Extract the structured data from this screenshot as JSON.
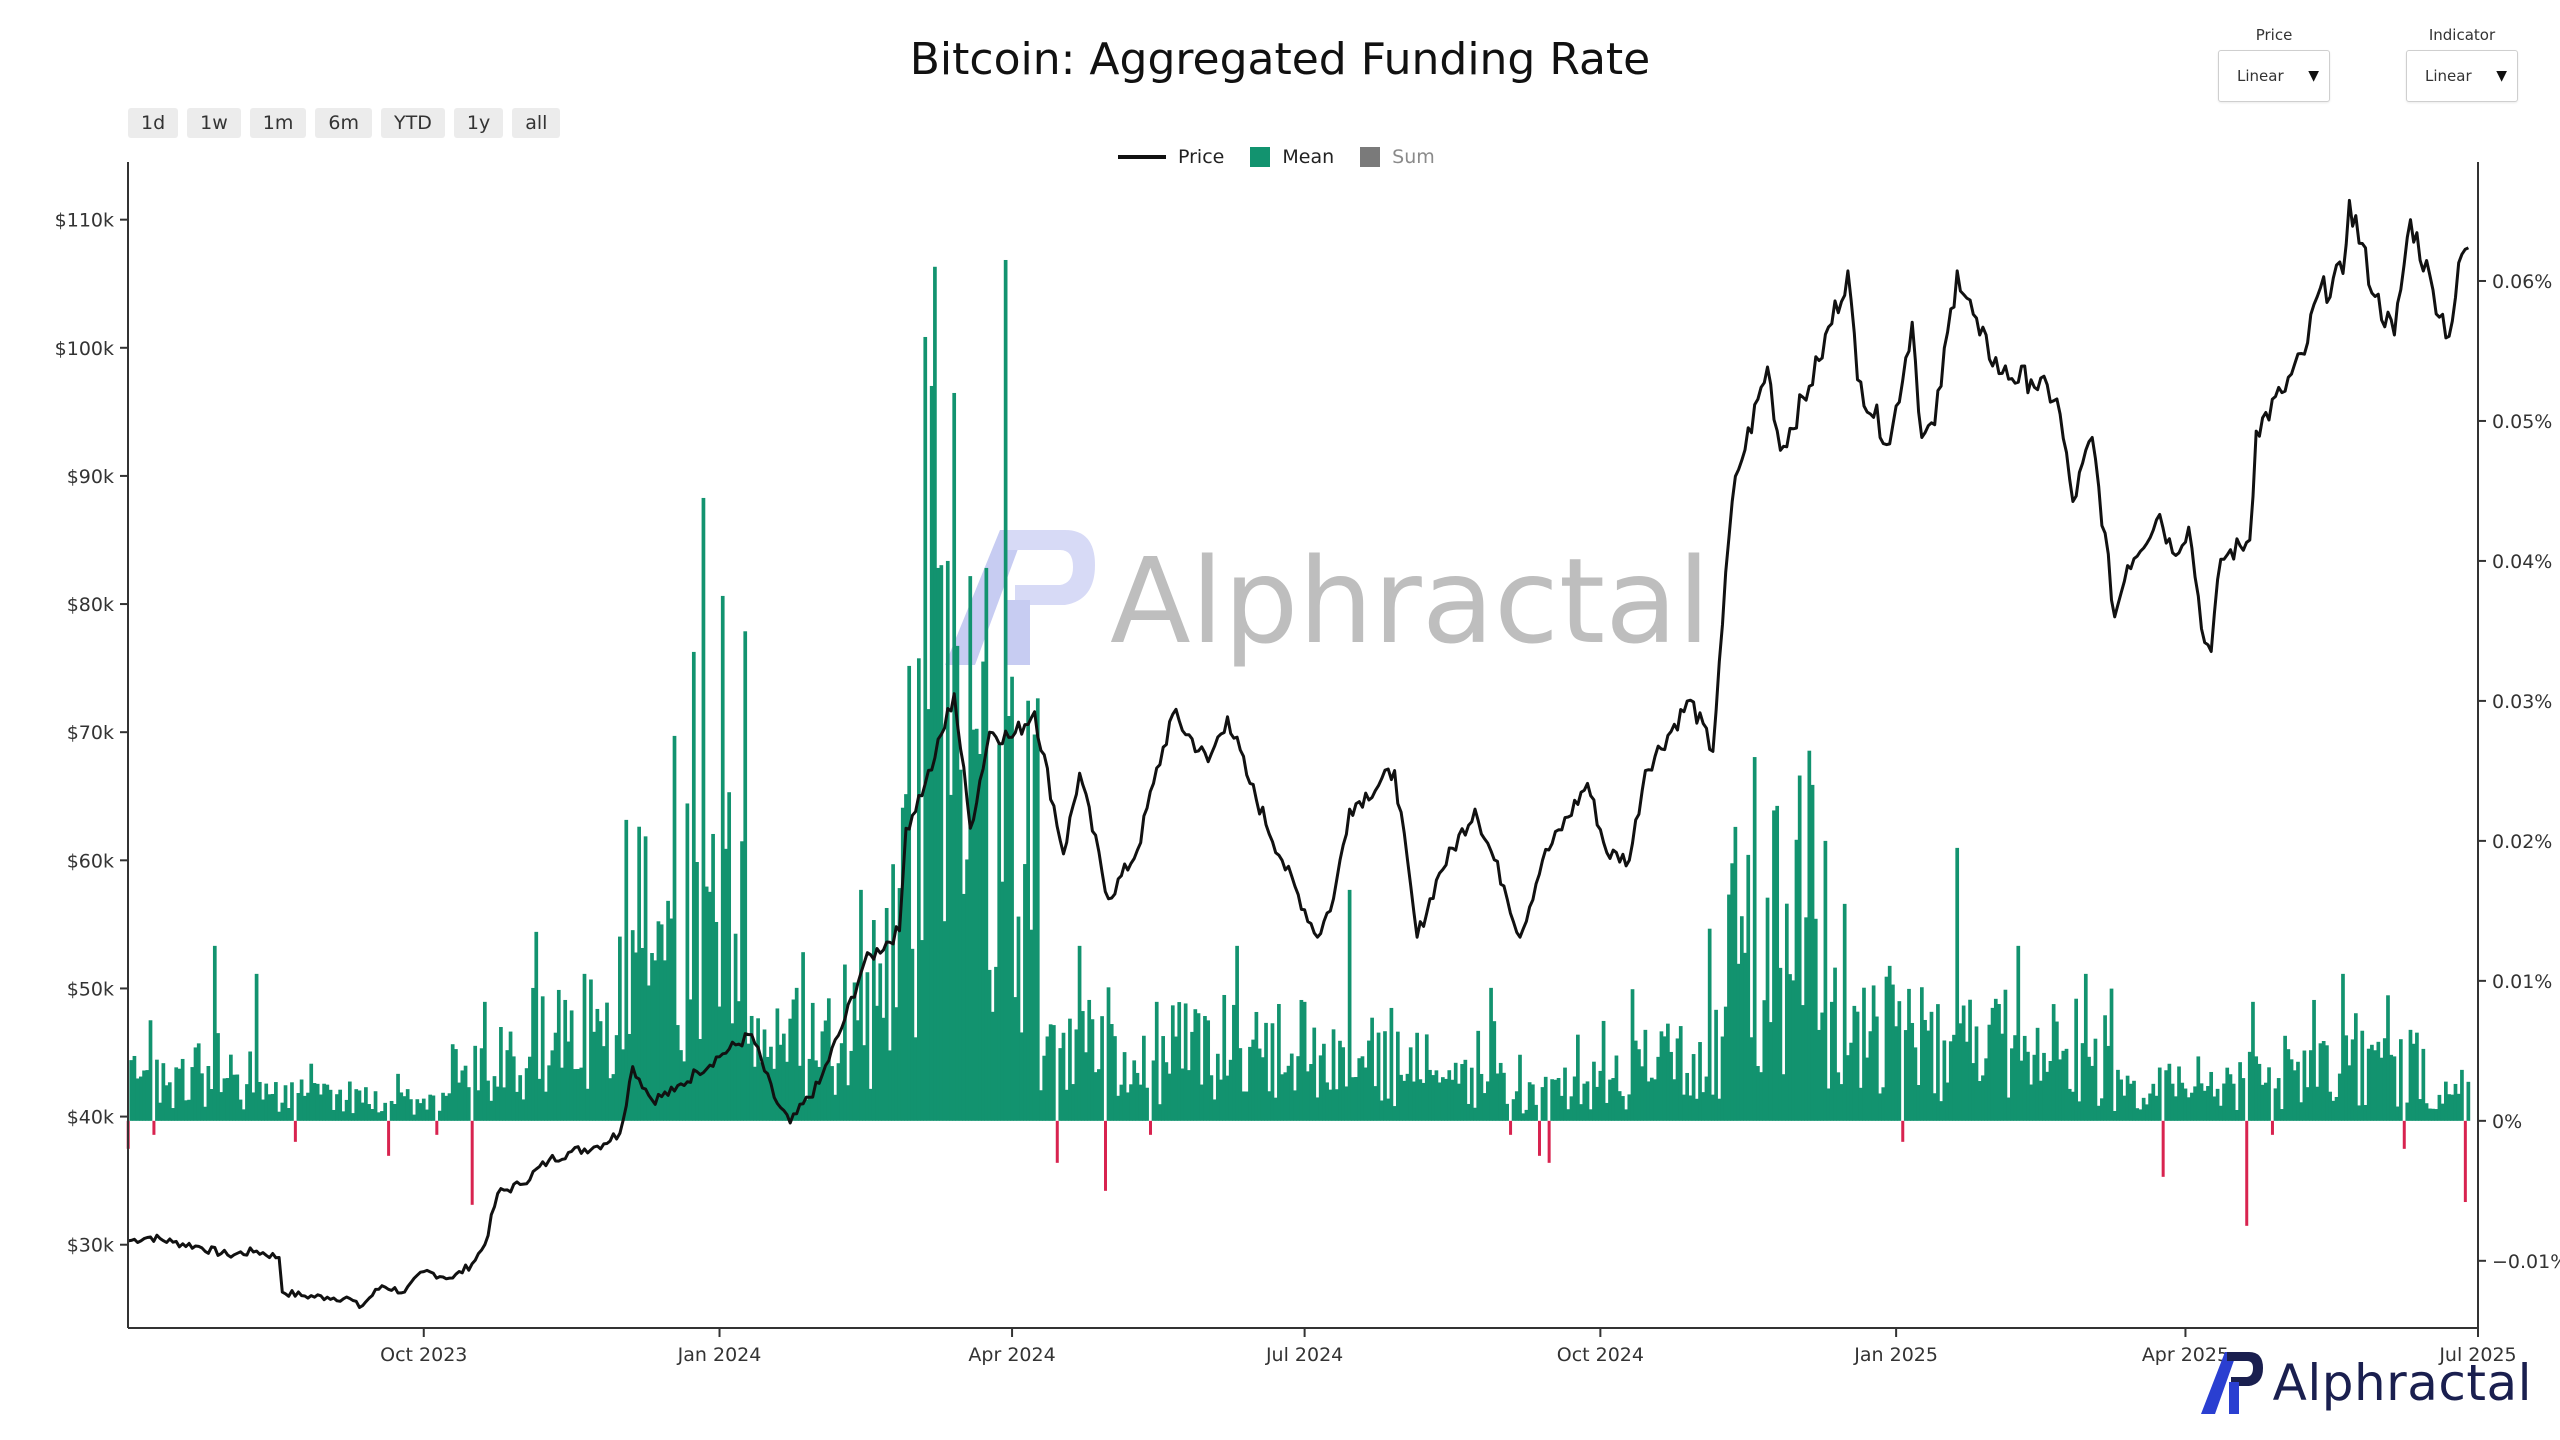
{
  "title": "Bitcoin: Aggregated Funding Rate",
  "range_buttons": [
    "1d",
    "1w",
    "1m",
    "6m",
    "YTD",
    "1y",
    "all"
  ],
  "selectors": [
    {
      "label": "Price",
      "value": "Linear"
    },
    {
      "label": "Indicator",
      "value": "Linear"
    }
  ],
  "legend": [
    {
      "name": "Price",
      "color": "#111111",
      "kind": "line"
    },
    {
      "name": "Mean",
      "color": "#12936f",
      "kind": "box"
    },
    {
      "name": "Sum",
      "color": "#7a7a7a",
      "kind": "box",
      "muted": true
    }
  ],
  "watermark_text": "Alphractal",
  "brand_text": "Alphractal",
  "colors": {
    "positive": "#12936f",
    "negative": "#d8234f",
    "price": "#111111",
    "logo_blue": "#2a3fd1",
    "logo_navy": "#1a1f4f"
  },
  "chart_data": {
    "type": "bar",
    "x_start": "2023-07-01",
    "x_end": "2025-07-01",
    "x_ticks": [
      "Oct 2023",
      "Jan 2024",
      "Apr 2024",
      "Jul 2024",
      "Oct 2024",
      "Jan 2025",
      "Apr 2025",
      "Jul 2025"
    ],
    "y_left": {
      "label": "",
      "ticks": [
        "$30k",
        "$40k",
        "$50k",
        "$60k",
        "$70k",
        "$80k",
        "$90k",
        "$100k",
        "$110k"
      ],
      "range": [
        23500,
        114500
      ]
    },
    "y_right": {
      "label": "",
      "ticks": [
        "−0.01%",
        "0%",
        "0.01%",
        "0.02%",
        "0.03%",
        "0.04%",
        "0.05%",
        "0.06%"
      ],
      "range": [
        -0.0148,
        0.0685
      ]
    },
    "grid": false,
    "legend_position": "top-center",
    "series": [
      {
        "name": "Price",
        "type": "line",
        "points": [
          [
            "2023-07-01",
            30300
          ],
          [
            "2023-07-08",
            30600
          ],
          [
            "2023-07-15",
            30200
          ],
          [
            "2023-07-22",
            29900
          ],
          [
            "2023-08-01",
            29200
          ],
          [
            "2023-08-10",
            29500
          ],
          [
            "2023-08-17",
            29000
          ],
          [
            "2023-08-18",
            26300
          ],
          [
            "2023-08-25",
            26000
          ],
          [
            "2023-09-01",
            25900
          ],
          [
            "2023-09-08",
            25800
          ],
          [
            "2023-09-11",
            25100
          ],
          [
            "2023-09-18",
            26800
          ],
          [
            "2023-09-25",
            26300
          ],
          [
            "2023-10-01",
            27900
          ],
          [
            "2023-10-10",
            27400
          ],
          [
            "2023-10-16",
            28500
          ],
          [
            "2023-10-20",
            30000
          ],
          [
            "2023-10-24",
            34000
          ],
          [
            "2023-10-31",
            34700
          ],
          [
            "2023-11-09",
            36600
          ],
          [
            "2023-11-15",
            37200
          ],
          [
            "2023-11-24",
            37700
          ],
          [
            "2023-12-01",
            38700
          ],
          [
            "2023-12-05",
            43900
          ],
          [
            "2023-12-11",
            41300
          ],
          [
            "2023-12-18",
            42000
          ],
          [
            "2023-12-25",
            43500
          ],
          [
            "2024-01-02",
            44900
          ],
          [
            "2024-01-11",
            46400
          ],
          [
            "2024-01-18",
            41500
          ],
          [
            "2024-01-23",
            39500
          ],
          [
            "2024-02-01",
            42600
          ],
          [
            "2024-02-09",
            47600
          ],
          [
            "2024-02-15",
            52000
          ],
          [
            "2024-02-26",
            54500
          ],
          [
            "2024-02-28",
            62500
          ],
          [
            "2024-03-05",
            66000
          ],
          [
            "2024-03-08",
            68000
          ],
          [
            "2024-03-14",
            73000
          ],
          [
            "2024-03-19",
            62500
          ],
          [
            "2024-03-25",
            70000
          ],
          [
            "2024-04-01",
            69600
          ],
          [
            "2024-04-08",
            71600
          ],
          [
            "2024-04-17",
            60500
          ],
          [
            "2024-04-22",
            66800
          ],
          [
            "2024-05-01",
            57000
          ],
          [
            "2024-05-10",
            60800
          ],
          [
            "2024-05-15",
            66000
          ],
          [
            "2024-05-21",
            71400
          ],
          [
            "2024-06-01",
            67700
          ],
          [
            "2024-06-07",
            71200
          ],
          [
            "2024-06-14",
            66000
          ],
          [
            "2024-06-24",
            60000
          ],
          [
            "2024-07-05",
            54000
          ],
          [
            "2024-07-10",
            57000
          ],
          [
            "2024-07-15",
            64000
          ],
          [
            "2024-07-29",
            67000
          ],
          [
            "2024-08-05",
            54000
          ],
          [
            "2024-08-12",
            59000
          ],
          [
            "2024-08-23",
            64000
          ],
          [
            "2024-09-01",
            58000
          ],
          [
            "2024-09-06",
            54000
          ],
          [
            "2024-09-13",
            60000
          ],
          [
            "2024-09-27",
            66000
          ],
          [
            "2024-10-03",
            60600
          ],
          [
            "2024-10-10",
            60000
          ],
          [
            "2024-10-15",
            67000
          ],
          [
            "2024-10-29",
            72500
          ],
          [
            "2024-11-05",
            68500
          ],
          [
            "2024-11-07",
            75500
          ],
          [
            "2024-11-11",
            88000
          ],
          [
            "2024-11-13",
            90500
          ],
          [
            "2024-11-22",
            98500
          ],
          [
            "2024-11-26",
            92000
          ],
          [
            "2024-12-05",
            97000
          ],
          [
            "2024-12-08",
            99000
          ],
          [
            "2024-12-17",
            106000
          ],
          [
            "2024-12-20",
            97500
          ],
          [
            "2024-12-30",
            92500
          ],
          [
            "2025-01-06",
            102000
          ],
          [
            "2025-01-09",
            93000
          ],
          [
            "2025-01-13",
            94000
          ],
          [
            "2025-01-20",
            106000
          ],
          [
            "2025-01-27",
            101000
          ],
          [
            "2025-02-03",
            98000
          ],
          [
            "2025-02-12",
            97500
          ],
          [
            "2025-02-20",
            96000
          ],
          [
            "2025-02-25",
            88000
          ],
          [
            "2025-03-03",
            93000
          ],
          [
            "2025-03-10",
            79000
          ],
          [
            "2025-03-14",
            83000
          ],
          [
            "2025-03-24",
            87000
          ],
          [
            "2025-03-28",
            84000
          ],
          [
            "2025-04-02",
            86000
          ],
          [
            "2025-04-07",
            77000
          ],
          [
            "2025-04-09",
            76300
          ],
          [
            "2025-04-12",
            83500
          ],
          [
            "2025-04-21",
            85000
          ],
          [
            "2025-04-23",
            93500
          ],
          [
            "2025-05-01",
            96500
          ],
          [
            "2025-05-08",
            99500
          ],
          [
            "2025-05-12",
            104000
          ],
          [
            "2025-05-20",
            105800
          ],
          [
            "2025-05-22",
            111500
          ],
          [
            "2025-05-30",
            104000
          ],
          [
            "2025-06-05",
            101000
          ],
          [
            "2025-06-10",
            110000
          ],
          [
            "2025-06-17",
            104500
          ],
          [
            "2025-06-22",
            100900
          ],
          [
            "2025-06-26",
            107300
          ],
          [
            "2025-06-28",
            107800
          ]
        ]
      },
      {
        "name": "Mean",
        "type": "bar",
        "note_periods": [
          [
            "2023-07-01",
            0.003
          ],
          [
            "2023-08-15",
            0.002
          ],
          [
            "2023-09-15",
            0.0015
          ],
          [
            "2023-10-10",
            0.0035
          ],
          [
            "2023-11-01",
            0.006
          ],
          [
            "2023-12-01",
            0.01
          ],
          [
            "2023-12-28",
            0.016
          ],
          [
            "2024-01-10",
            0.006
          ],
          [
            "2024-02-01",
            0.007
          ],
          [
            "2024-02-20",
            0.015
          ],
          [
            "2024-03-05",
            0.03
          ],
          [
            "2024-03-15",
            0.022
          ],
          [
            "2024-03-28",
            0.02
          ],
          [
            "2024-04-10",
            0.005
          ],
          [
            "2024-05-01",
            0.004
          ],
          [
            "2024-05-20",
            0.006
          ],
          [
            "2024-06-15",
            0.005
          ],
          [
            "2024-07-15",
            0.004
          ],
          [
            "2024-08-10",
            0.003
          ],
          [
            "2024-09-01",
            0.002
          ],
          [
            "2024-09-20",
            0.003
          ],
          [
            "2024-10-10",
            0.0045
          ],
          [
            "2024-11-01",
            0.006
          ],
          [
            "2024-11-10",
            0.012
          ],
          [
            "2024-12-10",
            0.007
          ],
          [
            "2025-01-10",
            0.0055
          ],
          [
            "2025-02-10",
            0.004
          ],
          [
            "2025-03-10",
            0.0025
          ],
          [
            "2025-04-10",
            0.003
          ],
          [
            "2025-05-10",
            0.004
          ],
          [
            "2025-06-15",
            0.002
          ]
        ],
        "spikes": [
          [
            "2023-07-28",
            0.0125
          ],
          [
            "2023-08-10",
            0.0105
          ],
          [
            "2023-10-20",
            0.0085
          ],
          [
            "2023-11-05",
            0.0135
          ],
          [
            "2023-11-20",
            0.0105
          ],
          [
            "2023-12-03",
            0.0215
          ],
          [
            "2023-12-18",
            0.0275
          ],
          [
            "2023-12-24",
            0.0335
          ],
          [
            "2023-12-27",
            0.0445
          ],
          [
            "2024-01-02",
            0.0375
          ],
          [
            "2024-01-25",
            0.0095
          ],
          [
            "2024-02-14",
            0.0165
          ],
          [
            "2024-02-29",
            0.0325
          ],
          [
            "2024-03-05",
            0.056
          ],
          [
            "2024-03-07",
            0.0525
          ],
          [
            "2024-03-09",
            0.0395
          ],
          [
            "2024-03-12",
            0.04
          ],
          [
            "2024-03-14",
            0.052
          ],
          [
            "2024-03-24",
            0.0395
          ],
          [
            "2024-03-30",
            0.0615
          ],
          [
            "2024-04-22",
            0.0125
          ],
          [
            "2024-05-16",
            0.0085
          ],
          [
            "2024-06-10",
            0.0125
          ],
          [
            "2024-07-01",
            0.0085
          ],
          [
            "2024-07-15",
            0.0165
          ],
          [
            "2024-08-28",
            0.0095
          ],
          [
            "2024-10-15",
            0.0065
          ],
          [
            "2024-11-12",
            0.021
          ],
          [
            "2024-11-16",
            0.019
          ],
          [
            "2024-11-25",
            0.0225
          ],
          [
            "2024-12-06",
            0.024
          ],
          [
            "2024-12-10",
            0.02
          ],
          [
            "2024-12-16",
            0.0155
          ],
          [
            "2025-01-20",
            0.0195
          ],
          [
            "2025-02-08",
            0.0125
          ],
          [
            "2025-03-01",
            0.0105
          ],
          [
            "2025-04-22",
            0.0085
          ],
          [
            "2025-05-20",
            0.0105
          ],
          [
            "2025-06-10",
            0.0065
          ]
        ],
        "negatives": [
          [
            "2023-07-01",
            -0.002
          ],
          [
            "2023-07-09",
            -0.001
          ],
          [
            "2023-08-22",
            -0.0015
          ],
          [
            "2023-09-20",
            -0.0025
          ],
          [
            "2023-10-05",
            -0.001
          ],
          [
            "2023-10-16",
            -0.006
          ],
          [
            "2024-04-15",
            -0.003
          ],
          [
            "2024-04-30",
            -0.005
          ],
          [
            "2024-05-14",
            -0.001
          ],
          [
            "2024-09-03",
            -0.001
          ],
          [
            "2024-09-12",
            -0.0025
          ],
          [
            "2024-09-15",
            -0.003
          ],
          [
            "2025-01-03",
            -0.0015
          ],
          [
            "2025-03-25",
            -0.004
          ],
          [
            "2025-04-20",
            -0.0075
          ],
          [
            "2025-04-28",
            -0.001
          ],
          [
            "2025-06-08",
            -0.002
          ],
          [
            "2025-06-27",
            -0.0058
          ]
        ]
      },
      {
        "name": "Sum",
        "type": "bar",
        "visible": false
      }
    ]
  }
}
